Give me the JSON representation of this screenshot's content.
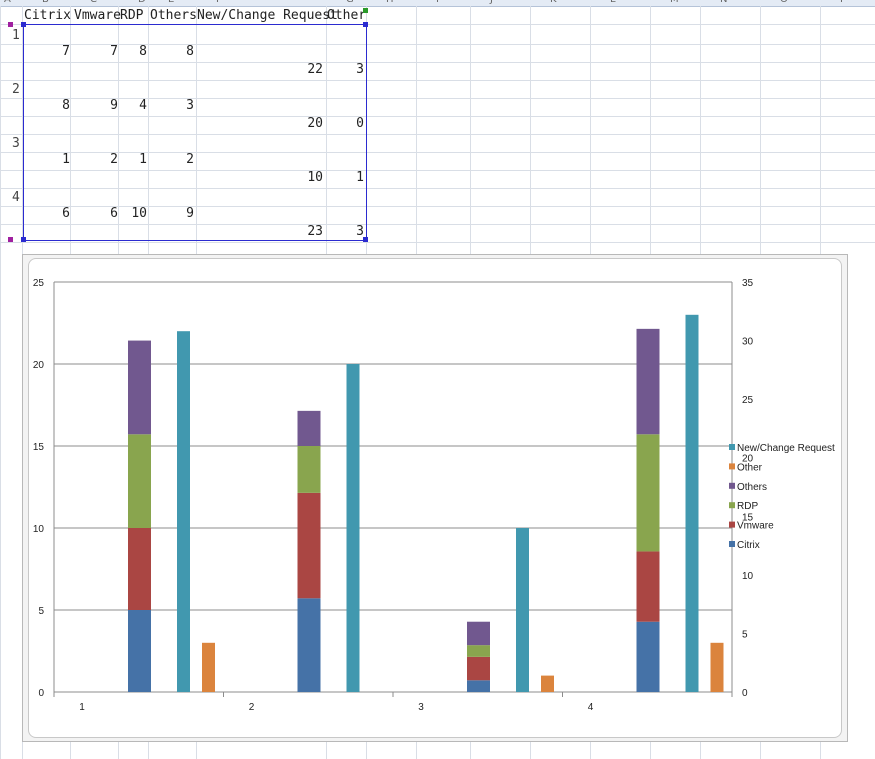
{
  "sheet": {
    "columns": [
      "A",
      "B",
      "C",
      "D",
      "E",
      "F",
      "G",
      "H",
      "I",
      "J",
      "K",
      "L",
      "M",
      "N",
      "O",
      "P"
    ],
    "headers": [
      "Citrix",
      "Vmware",
      "RDP",
      "Others",
      "New/Change Request",
      "Other"
    ],
    "rows": [
      {
        "label": "1",
        "citrix": "7",
        "vmware": "7",
        "rdp": "8",
        "others": "8",
        "new_change": "22",
        "other": "3"
      },
      {
        "label": "2",
        "citrix": "8",
        "vmware": "9",
        "rdp": "4",
        "others": "3",
        "new_change": "20",
        "other": "0"
      },
      {
        "label": "3",
        "citrix": "1",
        "vmware": "2",
        "rdp": "1",
        "others": "2",
        "new_change": "10",
        "other": "1"
      },
      {
        "label": "4",
        "citrix": "6",
        "vmware": "6",
        "rdp": "10",
        "others": "9",
        "new_change": "23",
        "other": "3"
      }
    ]
  },
  "chart_data": {
    "type": "bar",
    "categories": [
      "1",
      "2",
      "3",
      "4"
    ],
    "stacked_series_left_axis": [
      {
        "name": "Citrix",
        "color": "#4572a7",
        "values": [
          7,
          8,
          1,
          6
        ]
      },
      {
        "name": "Vmware",
        "color": "#aa4643",
        "values": [
          7,
          9,
          2,
          6
        ]
      },
      {
        "name": "RDP",
        "color": "#89a54e",
        "values": [
          8,
          4,
          1,
          10
        ]
      },
      {
        "name": "Others",
        "color": "#71588f",
        "values": [
          8,
          3,
          2,
          9
        ]
      }
    ],
    "series_left_axis": [
      {
        "name": "New/Change Request",
        "color": "#4198af",
        "values": [
          22,
          20,
          10,
          23
        ]
      },
      {
        "name": "Other",
        "color": "#db843d",
        "values": [
          3,
          0,
          1,
          3
        ]
      }
    ],
    "left_axis": {
      "ylim": [
        0,
        25
      ],
      "ticks": [
        "0",
        "5",
        "10",
        "15",
        "20",
        "25"
      ]
    },
    "right_axis": {
      "ylim": [
        0,
        35
      ],
      "ticks": [
        "0",
        "5",
        "10",
        "15",
        "20",
        "25",
        "30",
        "35"
      ]
    },
    "legend_position": "right",
    "legend": [
      "New/Change Request",
      "Other",
      "Others",
      "RDP",
      "Vmware",
      "Citrix"
    ],
    "grid": true
  }
}
